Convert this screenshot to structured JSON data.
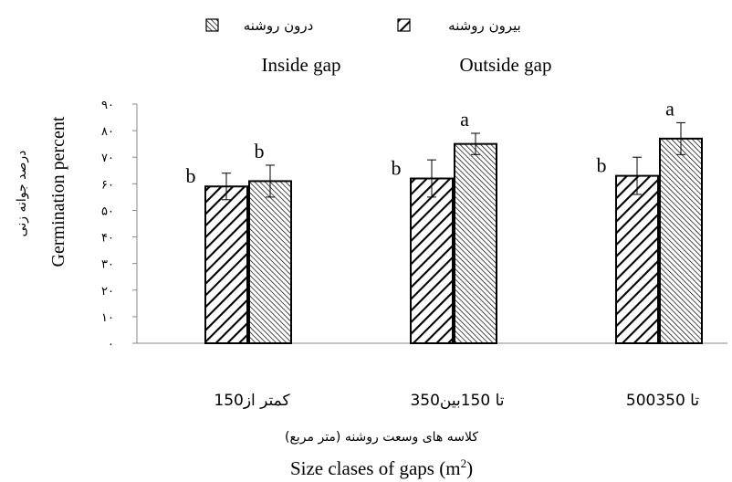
{
  "chart_data": {
    "type": "bar",
    "legend": {
      "placement": "top",
      "entries": [
        {
          "label_fa": "درون روشنه",
          "label_en": "Inside gap",
          "pattern": "dense-backslash"
        },
        {
          "label_fa": "بیرون روشنه",
          "label_en": "Outside gap",
          "pattern": "wide-slash"
        }
      ]
    },
    "ylabel_fa": "درصد جوانه زنی",
    "ylabel_en": "Germination percent",
    "xlabel_fa": "کلاسه های وسعت روشنه (متر مربع)",
    "xlabel_en_prefix": "Size clases of gaps (m",
    "xlabel_en_sup": "2",
    "xlabel_en_suffix": ")",
    "ylim": [
      0,
      90
    ],
    "yticks": [
      "۰",
      "۱۰",
      "۲۰",
      "۳۰",
      "۴۰",
      "۵۰",
      "۶۰",
      "۷۰",
      "۸۰",
      "۹۰"
    ],
    "categories": [
      "150کمتر از",
      "350تا 150بین",
      "500تا 350"
    ],
    "series": [
      {
        "name": "بیرون روشنه",
        "pattern": "wide-slash",
        "values": [
          59,
          62,
          63
        ],
        "errors": [
          5,
          7,
          7
        ],
        "letters": [
          "b",
          "b",
          "b"
        ]
      },
      {
        "name": "درون روشنه",
        "pattern": "dense-backslash",
        "values": [
          61,
          75,
          77
        ],
        "errors": [
          6,
          4,
          6
        ],
        "letters": [
          "b",
          "a",
          "a"
        ]
      }
    ]
  }
}
